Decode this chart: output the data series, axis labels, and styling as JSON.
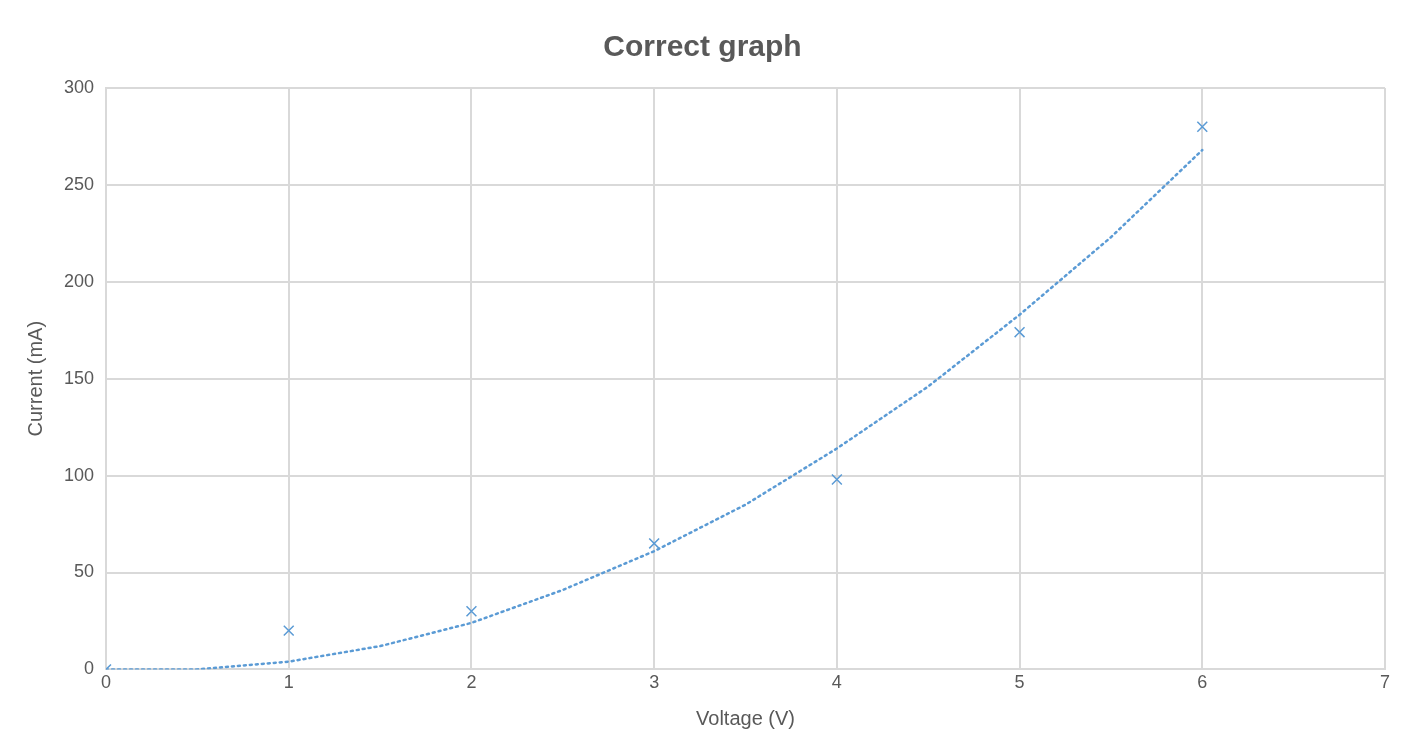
{
  "chart_data": {
    "type": "scatter",
    "title": "Correct graph",
    "xlabel": "Voltage (V)",
    "ylabel": "Current (mA)",
    "x": [
      0,
      1,
      2,
      3,
      4,
      5,
      6
    ],
    "series": [
      {
        "type": "scatter",
        "color": "#5b9bd5",
        "marker": "cross",
        "values": [
          0,
          20,
          30,
          65,
          98,
          174,
          280
        ]
      },
      {
        "type": "line",
        "color": "#5b9bd5",
        "line_style": "dotted",
        "marker": "none",
        "x": [
          0,
          0.5,
          1,
          1.5,
          2,
          2.5,
          3,
          3.5,
          4,
          4.5,
          5,
          5.5,
          6
        ],
        "values": [
          0,
          0,
          4,
          12,
          24,
          41,
          61,
          85,
          114,
          146,
          183,
          223,
          268
        ]
      }
    ],
    "xlim": [
      0,
      7
    ],
    "xticks": [
      0,
      1,
      2,
      3,
      4,
      5,
      6,
      7
    ],
    "ylim": [
      0,
      300
    ],
    "yticks": [
      0,
      50,
      100,
      150,
      200,
      250,
      300
    ],
    "grid": true,
    "legend": false
  }
}
